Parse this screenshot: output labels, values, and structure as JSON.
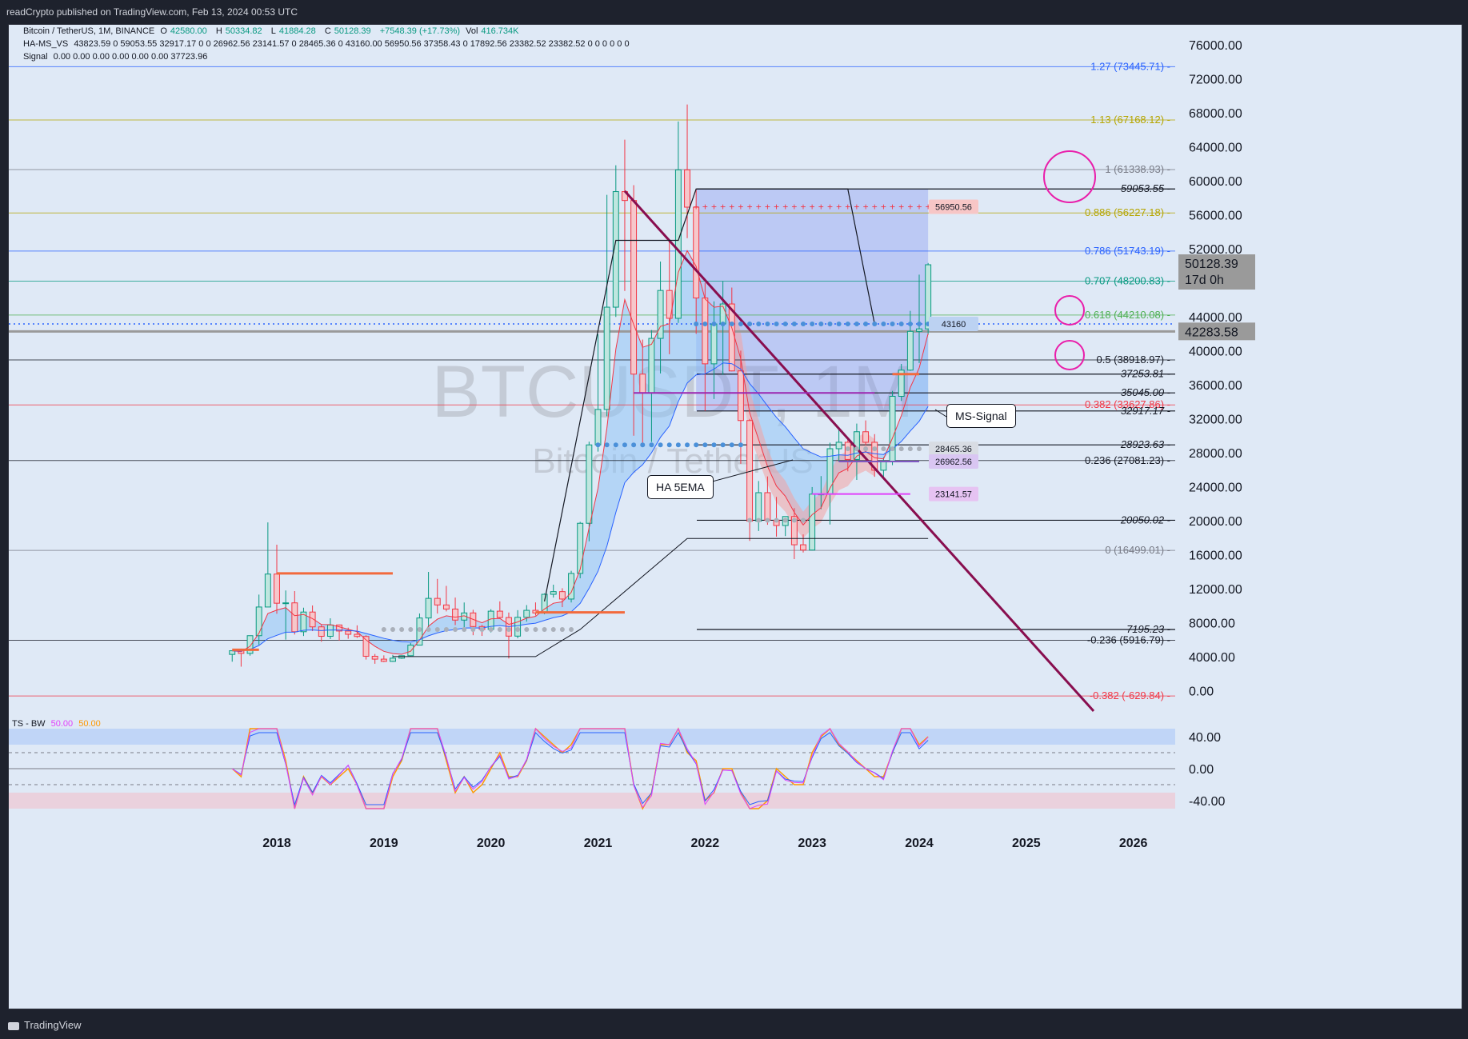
{
  "header": {
    "publish_line": "readCrypto published on TradingView.com, Feb 13, 2024 00:53 UTC"
  },
  "footer": {
    "brand": "TradingView"
  },
  "legend": {
    "symbol": "Bitcoin / TetherUS, 1M, BINANCE",
    "ohlc": [
      {
        "k": "O",
        "v": "42580.00"
      },
      {
        "k": "H",
        "v": "50334.82"
      },
      {
        "k": "L",
        "v": "41884.28"
      },
      {
        "k": "C",
        "v": "50128.39"
      }
    ],
    "change": "+7548.39 (+17.73%)",
    "vol_label": "Vol",
    "vol": "416.734K",
    "ha_ms": "HA-MS_VS",
    "ha_vals": [
      "43823.59",
      "0",
      "59053.55",
      "32917.17",
      "0",
      "0",
      "26962.56",
      "23141.57",
      "0",
      "28465.36",
      "0",
      "43160.00",
      "56950.56",
      "37358.43",
      "0",
      "17892.56",
      "23382.52",
      "23382.52",
      "0",
      "0",
      "0",
      "0",
      "0",
      "0"
    ],
    "signal": "Signal",
    "signal_vals": [
      "0.00",
      "0.00",
      "0.00",
      "0.00",
      "0.00",
      "0.00",
      "37723.96"
    ]
  },
  "watermark": {
    "ticker": "BTCUSDT, 1M",
    "name": "Bitcoin / TetherUS"
  },
  "callouts": {
    "ha5ema": "HA 5EMA",
    "ms_signal": "MS-Signal"
  },
  "price_axis": {
    "ticks": [
      "76000.00",
      "72000.00",
      "68000.00",
      "64000.00",
      "60000.00",
      "56000.00",
      "52000.00",
      "48000.00",
      "44000.00",
      "40000.00",
      "36000.00",
      "32000.00",
      "28000.00",
      "24000.00",
      "20000.00",
      "16000.00",
      "12000.00",
      "8000.00",
      "4000.00",
      "0.00"
    ]
  },
  "price_badges": {
    "last": "50128.39",
    "countdown": "17d 0h",
    "line": "42283.58"
  },
  "fib_levels": [
    {
      "label": "1.27 (73445.71)",
      "value": 73445.71,
      "color": "#2962ff"
    },
    {
      "label": "1.13 (67168.12)",
      "value": 67168.12,
      "color": "#b5a500"
    },
    {
      "label": "1 (61338.93)",
      "value": 61338.93,
      "color": "#787b86"
    },
    {
      "label": "0.886 (56227.18)",
      "value": 56227.18,
      "color": "#b5a500"
    },
    {
      "label": "0.786 (51743.19)",
      "value": 51743.19,
      "color": "#2962ff"
    },
    {
      "label": "0.707 (48200.83)",
      "value": 48200.83,
      "color": "#089981"
    },
    {
      "label": "0.618 (44210.08)",
      "value": 44210.08,
      "color": "#4caf50"
    },
    {
      "label": "0.5 (38918.97)",
      "value": 38918.97,
      "color": "#131722"
    },
    {
      "label": "0.382 (33627.86)",
      "value": 33627.86,
      "color": "#f23645"
    },
    {
      "label": "0.236 (27081.23)",
      "value": 27081.23,
      "color": "#131722"
    },
    {
      "label": "0 (16499.01)",
      "value": 16499.01,
      "color": "#787b86"
    },
    {
      "label": "-0.236 (5916.79)",
      "value": 5916.79,
      "color": "#131722"
    },
    {
      "label": "-0.382 (-629.84)",
      "value": -629.84,
      "color": "#f23645"
    }
  ],
  "hlines": [
    {
      "label": "59053.55",
      "value": 59053.55
    },
    {
      "label": "37253.81",
      "value": 37253.81
    },
    {
      "label": "35045.00",
      "value": 35045.0
    },
    {
      "label": "32917.17",
      "value": 32917.17
    },
    {
      "label": "28923.63",
      "value": 28923.63
    },
    {
      "label": "20050.02",
      "value": 20050.02
    },
    {
      "label": "7195.23",
      "value": 7195.23
    }
  ],
  "level_tags": [
    {
      "label": "56950.56",
      "value": 56950.56,
      "bg": "#f7c6c6"
    },
    {
      "label": "43160",
      "value": 43160,
      "bg": "#bcd2f2"
    },
    {
      "label": "28465.36",
      "value": 28465.36,
      "bg": "#d8dce3"
    },
    {
      "label": "26962.56",
      "value": 26962.56,
      "bg": "#d9c6f2"
    },
    {
      "label": "23141.57",
      "value": 23141.57,
      "bg": "#e6c3f2"
    }
  ],
  "time_axis": {
    "ticks": [
      "2018",
      "2019",
      "2020",
      "2021",
      "2022",
      "2023",
      "2024",
      "2025",
      "2026"
    ]
  },
  "oscillator": {
    "name": "TS - BW",
    "v1": "50.00",
    "v2": "50.00",
    "ticks": [
      "40.00",
      "0.00",
      "-40.00"
    ],
    "colors": {
      "orange": "#ff9800",
      "magenta": "#e040fb",
      "blue": "#2962ff"
    }
  },
  "chart_data": {
    "type": "candlestick",
    "title": "Bitcoin / TetherUS, 1M, BINANCE",
    "ylim": [
      -2600,
      78000
    ],
    "x": [
      "2017-08",
      "2017-09",
      "2017-10",
      "2017-11",
      "2017-12",
      "2018-01",
      "2018-02",
      "2018-03",
      "2018-04",
      "2018-05",
      "2018-06",
      "2018-07",
      "2018-08",
      "2018-09",
      "2018-10",
      "2018-11",
      "2018-12",
      "2019-01",
      "2019-02",
      "2019-03",
      "2019-04",
      "2019-05",
      "2019-06",
      "2019-07",
      "2019-08",
      "2019-09",
      "2019-10",
      "2019-11",
      "2019-12",
      "2020-01",
      "2020-02",
      "2020-03",
      "2020-04",
      "2020-05",
      "2020-06",
      "2020-07",
      "2020-08",
      "2020-09",
      "2020-10",
      "2020-11",
      "2020-12",
      "2021-01",
      "2021-02",
      "2021-03",
      "2021-04",
      "2021-05",
      "2021-06",
      "2021-07",
      "2021-08",
      "2021-09",
      "2021-10",
      "2021-11",
      "2021-12",
      "2022-01",
      "2022-02",
      "2022-03",
      "2022-04",
      "2022-05",
      "2022-06",
      "2022-07",
      "2022-08",
      "2022-09",
      "2022-10",
      "2022-11",
      "2022-12",
      "2023-01",
      "2023-02",
      "2023-03",
      "2023-04",
      "2023-05",
      "2023-06",
      "2023-07",
      "2023-08",
      "2023-09",
      "2023-10",
      "2023-11",
      "2023-12",
      "2024-01",
      "2024-02"
    ],
    "open": [
      4261,
      4689,
      4378,
      6463,
      9837,
      13716,
      10285,
      10326,
      6928,
      9246,
      7500,
      6391,
      7725,
      7011,
      6626,
      6369,
      4041,
      3701,
      3437,
      3814,
      4102,
      5350,
      8545,
      10854,
      10080,
      9600,
      8299,
      9140,
      7540,
      7195,
      9350,
      8600,
      6412,
      8624,
      9446,
      9138,
      11335,
      11649,
      10776,
      13791,
      19695,
      28923,
      33092,
      45135,
      58740,
      57694,
      37253,
      35045,
      41461,
      47100,
      43823,
      61300,
      56907,
      46216,
      38466,
      43160,
      45510,
      37630,
      31790,
      19942,
      23296,
      20050,
      19431,
      20490,
      17165,
      16541,
      23125,
      23141,
      28473,
      29233,
      27210,
      30472,
      29232,
      25940,
      26962,
      34639,
      37723,
      42283,
      42580
    ],
    "high": [
      4745,
      4939,
      6470,
      11300,
      19798,
      17176,
      11786,
      11711,
      9759,
      10020,
      7786,
      8507,
      7769,
      7410,
      7680,
      6507,
      4309,
      4143,
      4198,
      4140,
      5600,
      9074,
      13970,
      13147,
      12325,
      10948,
      10370,
      9513,
      7744,
      9578,
      10500,
      9188,
      9467,
      10067,
      10380,
      11444,
      12468,
      12050,
      14100,
      19863,
      29300,
      41950,
      58352,
      61844,
      64854,
      59500,
      41330,
      42448,
      50500,
      52920,
      67000,
      69000,
      59053,
      48000,
      45821,
      48189,
      47444,
      40023,
      31982,
      24668,
      25211,
      22799,
      20475,
      21480,
      18387,
      23960,
      25250,
      29184,
      31000,
      29820,
      31431,
      31804,
      30190,
      27483,
      35280,
      38450,
      44700,
      48969,
      50334
    ],
    "low": [
      3400,
      2817,
      4110,
      5387,
      10400,
      9035,
      6000,
      6600,
      6425,
      7000,
      5750,
      6070,
      5880,
      6100,
      6200,
      3652,
      3156,
      3349,
      3372,
      3730,
      4050,
      5336,
      7444,
      9070,
      9320,
      7710,
      7300,
      6515,
      6435,
      6850,
      8450,
      3782,
      6150,
      8116,
      8833,
      8988,
      10950,
      9825,
      10374,
      13219,
      17572,
      28130,
      32296,
      43988,
      47044,
      30000,
      28805,
      29278,
      37332,
      39600,
      43283,
      53256,
      42000,
      32917,
      34322,
      37155,
      37578,
      26700,
      17622,
      18781,
      19520,
      18125,
      18190,
      15476,
      16256,
      16499,
      21351,
      19549,
      26942,
      25811,
      24800,
      28861,
      25166,
      24901,
      26538,
      34097,
      37629,
      38555,
      41884
    ],
    "close": [
      4689,
      4378,
      6463,
      9837,
      13716,
      10285,
      10326,
      6928,
      9246,
      7500,
      6391,
      7725,
      7011,
      6626,
      6369,
      4041,
      3701,
      3437,
      3814,
      4102,
      5350,
      8545,
      10854,
      10080,
      9600,
      8299,
      9140,
      7540,
      7195,
      9350,
      8600,
      6412,
      8624,
      9446,
      9138,
      11335,
      11649,
      10776,
      13791,
      19695,
      28923,
      33092,
      45135,
      58740,
      57694,
      37253,
      35045,
      41461,
      47100,
      43823,
      61300,
      56907,
      46216,
      38466,
      43160,
      45510,
      37630,
      31790,
      19942,
      23296,
      20050,
      19431,
      20490,
      17165,
      16541,
      23125,
      23141,
      28473,
      29233,
      27210,
      30472,
      29232,
      25940,
      26962,
      34639,
      37723,
      42283,
      42580,
      50128
    ]
  }
}
